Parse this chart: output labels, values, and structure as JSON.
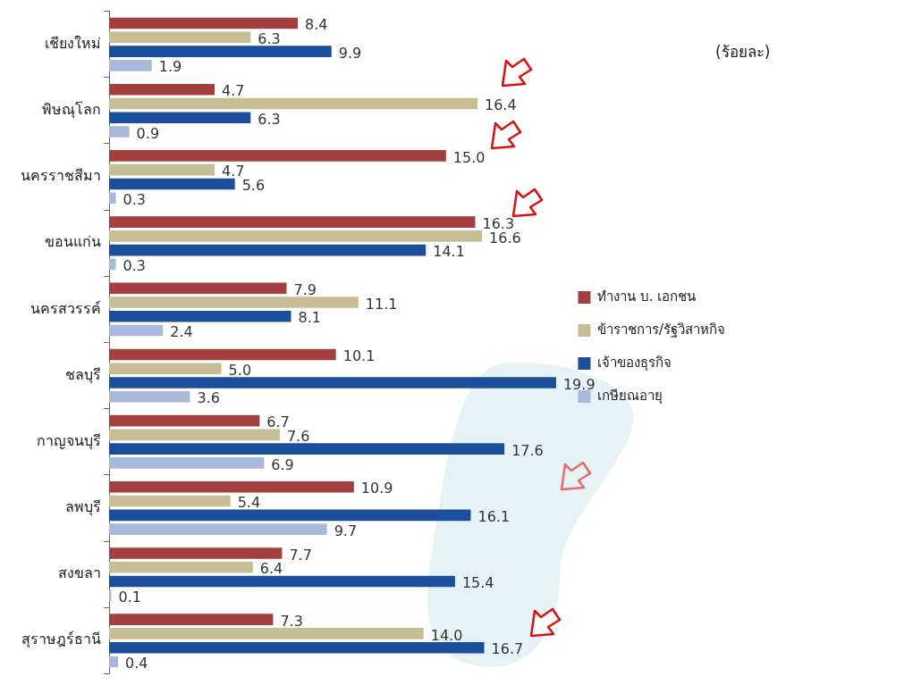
{
  "chart_data": {
    "type": "bar",
    "orientation": "horizontal",
    "categories": [
      "เชียงใหม่",
      "พิษณุโลก",
      "นครราชสีมา",
      "ขอนแก่น",
      "นครสวรรค์",
      "ชลบุรี",
      "กาญจนบุรี",
      "ลพบุรี",
      "สงขลา",
      "สุราษฎร์ธานี"
    ],
    "series": [
      {
        "name": "ทำงาน บ. เอกชน",
        "color": "#a33f3f",
        "values": [
          8.4,
          4.7,
          15.0,
          16.3,
          7.9,
          10.1,
          6.7,
          10.9,
          7.7,
          7.3
        ],
        "value_labels": [
          "8.4",
          "4.7",
          "15.0",
          "16.3",
          "7.9",
          "10.1",
          "6.7",
          "10.9",
          "7.7",
          "7.3"
        ]
      },
      {
        "name": "ข้าราชการ/รัฐวิสาหกิจ",
        "color": "#c7bd94",
        "values": [
          6.3,
          16.4,
          4.7,
          16.6,
          11.1,
          5.0,
          7.6,
          5.4,
          6.4,
          14.0
        ],
        "value_labels": [
          "6.3",
          "16.4",
          "4.7",
          "16.6",
          "11.1",
          "5.0",
          "7.6",
          "5.4",
          "6.4",
          "14.0"
        ]
      },
      {
        "name": "เจ้าของธุรกิจ",
        "color": "#1b4f9c",
        "values": [
          9.9,
          6.3,
          5.6,
          14.1,
          8.1,
          19.9,
          17.6,
          16.1,
          15.4,
          16.7
        ],
        "value_labels": [
          "9.9",
          "6.3",
          "5.6",
          "14.1",
          "8.1",
          "19.9",
          "17.6",
          "16.1",
          "15.4",
          "16.7"
        ]
      },
      {
        "name": "เกษียณอายุ",
        "color": "#a9b9d9",
        "values": [
          1.9,
          0.9,
          0.3,
          0.3,
          2.4,
          3.6,
          6.9,
          9.7,
          0.1,
          0.4
        ],
        "value_labels": [
          "1.9",
          "0.9",
          "0.3",
          "0.3",
          "2.4",
          "3.6",
          "6.9",
          "9.7",
          "0.1",
          "0.4"
        ]
      }
    ],
    "annotations": [
      "(ร้อยละ)"
    ],
    "legend": "right",
    "grid": false
  }
}
